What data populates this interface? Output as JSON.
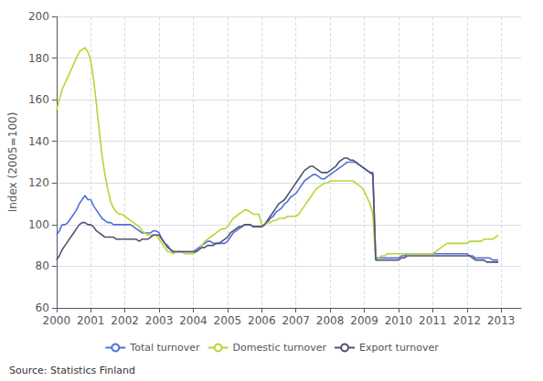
{
  "chart_data": {
    "type": "line",
    "ylabel": "Index (2005=100)",
    "annotations": [
      "Source: Statistics Finland"
    ],
    "xlim": [
      2000,
      2013.583
    ],
    "xticks": [
      2000,
      2001,
      2002,
      2003,
      2004,
      2005,
      2006,
      2007,
      2008,
      2009,
      2010,
      2011,
      2012,
      2013
    ],
    "ylim": [
      60,
      200
    ],
    "yticks": [
      60,
      80,
      100,
      120,
      140,
      160,
      180,
      200
    ],
    "grid": true,
    "legend": "bottom",
    "x": [
      2000,
      2000.083,
      2000.167,
      2000.25,
      2000.333,
      2000.417,
      2000.5,
      2000.583,
      2000.667,
      2000.75,
      2000.833,
      2000.917,
      2001,
      2001.083,
      2001.167,
      2001.25,
      2001.333,
      2001.417,
      2001.5,
      2001.583,
      2001.667,
      2001.75,
      2001.833,
      2001.917,
      2002,
      2002.083,
      2002.167,
      2002.25,
      2002.333,
      2002.417,
      2002.5,
      2002.583,
      2002.667,
      2002.75,
      2002.833,
      2002.917,
      2003,
      2003.083,
      2003.167,
      2003.25,
      2003.333,
      2003.417,
      2003.5,
      2003.583,
      2003.667,
      2003.75,
      2003.833,
      2003.917,
      2004,
      2004.083,
      2004.167,
      2004.25,
      2004.333,
      2004.417,
      2004.5,
      2004.583,
      2004.667,
      2004.75,
      2004.833,
      2004.917,
      2005,
      2005.083,
      2005.167,
      2005.25,
      2005.333,
      2005.417,
      2005.5,
      2005.583,
      2005.667,
      2005.75,
      2005.833,
      2005.917,
      2006,
      2006.083,
      2006.167,
      2006.25,
      2006.333,
      2006.417,
      2006.5,
      2006.583,
      2006.667,
      2006.75,
      2006.833,
      2006.917,
      2007,
      2007.083,
      2007.167,
      2007.25,
      2007.333,
      2007.417,
      2007.5,
      2007.583,
      2007.667,
      2007.75,
      2007.833,
      2007.917,
      2008,
      2008.083,
      2008.167,
      2008.25,
      2008.333,
      2008.417,
      2008.5,
      2008.583,
      2008.667,
      2008.75,
      2008.833,
      2008.917,
      2009,
      2009.083,
      2009.167,
      2009.25,
      2009.333,
      2009.417,
      2009.5,
      2009.583,
      2009.667,
      2009.75,
      2009.833,
      2009.917,
      2010,
      2010.083,
      2010.167,
      2010.25,
      2010.333,
      2010.417,
      2010.5,
      2010.583,
      2010.667,
      2010.75,
      2010.833,
      2010.917,
      2011,
      2011.083,
      2011.167,
      2011.25,
      2011.333,
      2011.417,
      2011.5,
      2011.583,
      2011.667,
      2011.75,
      2011.833,
      2011.917,
      2012,
      2012.083,
      2012.167,
      2012.25,
      2012.333,
      2012.417,
      2012.5,
      2012.583,
      2012.667,
      2012.75,
      2012.833,
      2012.917
    ],
    "series": [
      {
        "name": "Total turnover",
        "values": [
          95,
          97,
          100,
          100,
          101,
          103,
          105,
          107,
          110,
          112,
          114,
          112,
          112,
          109,
          107,
          105,
          103,
          102,
          101,
          101,
          100,
          100,
          100,
          100,
          100,
          100,
          100,
          99,
          98,
          97,
          96,
          96,
          96,
          96,
          97,
          97,
          96,
          93,
          91,
          90,
          88,
          87,
          87,
          87,
          87,
          87,
          87,
          87,
          87,
          88,
          89,
          90,
          91,
          92,
          92,
          91,
          91,
          91,
          91,
          91,
          92,
          94,
          96,
          97,
          98,
          99,
          100,
          100,
          100,
          99,
          99,
          99,
          99,
          100,
          101,
          103,
          104,
          106,
          107,
          108,
          110,
          111,
          113,
          114,
          115,
          117,
          119,
          121,
          122,
          123,
          124,
          124,
          123,
          122,
          122,
          123,
          124,
          125,
          126,
          127,
          128,
          129,
          130,
          130,
          130,
          130,
          129,
          128,
          127,
          126,
          125,
          125,
          84,
          84,
          84,
          84,
          84,
          84,
          84,
          84,
          84,
          85,
          85,
          86,
          86,
          86,
          86,
          86,
          86,
          86,
          86,
          86,
          86,
          86,
          86,
          86,
          86,
          86,
          86,
          86,
          86,
          86,
          86,
          86,
          86,
          85,
          85,
          84,
          84,
          84,
          84,
          84,
          84,
          83,
          83,
          83
        ]
      },
      {
        "name": "Domestic turnover",
        "values": [
          155,
          160,
          165,
          168,
          171,
          174,
          177,
          180,
          183,
          184,
          185,
          183,
          179,
          170,
          158,
          145,
          133,
          124,
          117,
          111,
          108,
          106,
          105,
          105,
          104,
          103,
          102,
          101,
          100,
          99,
          97,
          96,
          95,
          95,
          95,
          95,
          93,
          91,
          89,
          87,
          87,
          86,
          87,
          87,
          87,
          86,
          86,
          86,
          86,
          87,
          88,
          90,
          92,
          93,
          94,
          95,
          96,
          97,
          98,
          98,
          99,
          101,
          103,
          104,
          105,
          106,
          107,
          107,
          106,
          105,
          105,
          105,
          100,
          100,
          101,
          101,
          102,
          102,
          103,
          103,
          103,
          104,
          104,
          104,
          104,
          105,
          107,
          109,
          111,
          113,
          115,
          117,
          118,
          119,
          120,
          120,
          121,
          121,
          121,
          121,
          121,
          121,
          121,
          121,
          121,
          120,
          119,
          118,
          116,
          113,
          110,
          105,
          83,
          84,
          85,
          85,
          86,
          86,
          86,
          86,
          86,
          86,
          86,
          86,
          86,
          86,
          86,
          86,
          86,
          86,
          86,
          86,
          86,
          87,
          88,
          89,
          90,
          91,
          91,
          91,
          91,
          91,
          91,
          91,
          91,
          92,
          92,
          92,
          92,
          92,
          93,
          93,
          93,
          93,
          94,
          95
        ]
      },
      {
        "name": "Export turnover",
        "values": [
          83,
          85,
          88,
          90,
          92,
          94,
          96,
          98,
          100,
          101,
          101,
          100,
          100,
          99,
          97,
          96,
          95,
          94,
          94,
          94,
          94,
          93,
          93,
          93,
          93,
          93,
          93,
          93,
          93,
          92,
          93,
          93,
          93,
          94,
          95,
          95,
          95,
          93,
          91,
          89,
          88,
          87,
          87,
          87,
          87,
          87,
          87,
          87,
          87,
          87,
          88,
          89,
          89,
          90,
          90,
          90,
          91,
          91,
          92,
          93,
          94,
          96,
          97,
          98,
          99,
          99,
          100,
          100,
          100,
          99,
          99,
          99,
          99,
          100,
          102,
          104,
          106,
          108,
          110,
          111,
          112,
          114,
          116,
          118,
          120,
          122,
          124,
          126,
          127,
          128,
          128,
          127,
          126,
          125,
          125,
          125,
          126,
          127,
          128,
          130,
          131,
          132,
          132,
          131,
          131,
          130,
          129,
          128,
          127,
          126,
          125,
          124,
          83,
          83,
          83,
          83,
          83,
          83,
          83,
          83,
          83,
          84,
          84,
          85,
          85,
          85,
          85,
          85,
          85,
          85,
          85,
          85,
          85,
          85,
          85,
          85,
          85,
          85,
          85,
          85,
          85,
          85,
          85,
          85,
          85,
          85,
          84,
          83,
          83,
          83,
          83,
          82,
          82,
          82,
          82,
          82
        ]
      }
    ]
  }
}
